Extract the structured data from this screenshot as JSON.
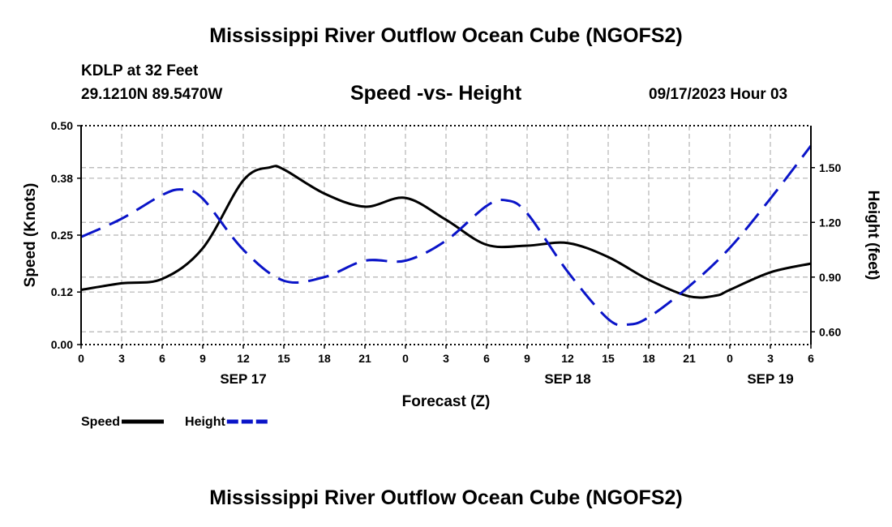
{
  "page": {
    "title_top": "Mississippi River Outflow Ocean Cube (NGOFS2)",
    "title_bottom": "Mississippi River Outflow Ocean Cube (NGOFS2)",
    "station": "KDLP at 32 Feet",
    "coords": "29.1210N  89.5470W",
    "chart_title": "Speed -vs- Height",
    "datetime": "09/17/2023 Hour 03"
  },
  "colors": {
    "speed": "#000000",
    "height": "#0a14c8",
    "grid": "#b4b4b4"
  },
  "chart_data": {
    "type": "line",
    "title": "Speed -vs- Height",
    "xlabel": "Forecast (Z)",
    "ylabel": "Speed (Knots)",
    "y2label": "Height (feet)",
    "x_range": [
      0,
      54
    ],
    "x_tick_values": [
      0,
      3,
      6,
      9,
      12,
      15,
      18,
      21,
      24,
      27,
      30,
      33,
      36,
      39,
      42,
      45,
      48,
      51,
      54
    ],
    "x_tick_labels": [
      "0",
      "3",
      "6",
      "9",
      "12",
      "15",
      "18",
      "21",
      "0",
      "3",
      "6",
      "9",
      "12",
      "15",
      "18",
      "21",
      "0",
      "3",
      "6"
    ],
    "date_labels": [
      {
        "at": 12,
        "text": "SEP 17"
      },
      {
        "at": 36,
        "text": "SEP 18"
      },
      {
        "at": 51,
        "text": "SEP 19"
      }
    ],
    "ylim": [
      0,
      0.5
    ],
    "y_ticks": [
      0.0,
      0.12,
      0.25,
      0.38,
      0.5
    ],
    "y_tick_labels": [
      "0.00",
      "0.12",
      "0.25",
      "0.38",
      "0.50"
    ],
    "y2lim": [
      0.53,
      1.73
    ],
    "y2_ticks": [
      0.6,
      0.9,
      1.2,
      1.5
    ],
    "y2_tick_labels": [
      "0.60",
      "0.90",
      "1.20",
      "1.50"
    ],
    "legend": [
      {
        "label": "Speed",
        "key": "speed"
      },
      {
        "label": "Height",
        "key": "height"
      }
    ],
    "series": [
      {
        "name": "Speed",
        "axis": "left",
        "style": "solid",
        "x": [
          0,
          3,
          6,
          9,
          12,
          14,
          15,
          18,
          21,
          24,
          27,
          30,
          33,
          36,
          39,
          42,
          45,
          47,
          48,
          51,
          54
        ],
        "values": [
          0.125,
          0.14,
          0.15,
          0.22,
          0.375,
          0.405,
          0.4,
          0.345,
          0.315,
          0.335,
          0.285,
          0.228,
          0.226,
          0.232,
          0.2,
          0.148,
          0.11,
          0.112,
          0.125,
          0.165,
          0.185
        ]
      },
      {
        "name": "Height",
        "axis": "right",
        "style": "dashed",
        "x": [
          0,
          3,
          6,
          7.5,
          9,
          12,
          15,
          18,
          21,
          24,
          27,
          30,
          31.5,
          33,
          36,
          39,
          40.5,
          42,
          45,
          48,
          51,
          54
        ],
        "values": [
          1.12,
          1.22,
          1.35,
          1.38,
          1.33,
          1.05,
          0.88,
          0.9,
          0.99,
          0.99,
          1.1,
          1.29,
          1.32,
          1.25,
          0.93,
          0.67,
          0.64,
          0.68,
          0.85,
          1.06,
          1.33,
          1.62
        ]
      }
    ]
  }
}
